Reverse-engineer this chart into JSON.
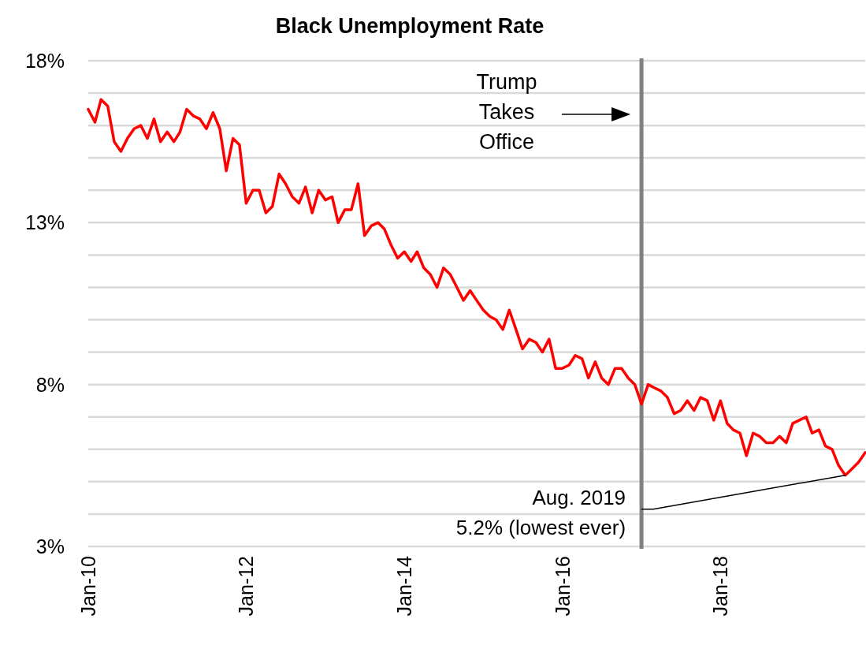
{
  "chart_data": {
    "type": "line",
    "title": "Black Unemployment Rate",
    "x": [
      "2010-01",
      "2010-02",
      "2010-03",
      "2010-04",
      "2010-05",
      "2010-06",
      "2010-07",
      "2010-08",
      "2010-09",
      "2010-10",
      "2010-11",
      "2010-12",
      "2011-01",
      "2011-02",
      "2011-03",
      "2011-04",
      "2011-05",
      "2011-06",
      "2011-07",
      "2011-08",
      "2011-09",
      "2011-10",
      "2011-11",
      "2011-12",
      "2012-01",
      "2012-02",
      "2012-03",
      "2012-04",
      "2012-05",
      "2012-06",
      "2012-07",
      "2012-08",
      "2012-09",
      "2012-10",
      "2012-11",
      "2012-12",
      "2013-01",
      "2013-02",
      "2013-03",
      "2013-04",
      "2013-05",
      "2013-06",
      "2013-07",
      "2013-08",
      "2013-09",
      "2013-10",
      "2013-11",
      "2013-12",
      "2014-01",
      "2014-02",
      "2014-03",
      "2014-04",
      "2014-05",
      "2014-06",
      "2014-07",
      "2014-08",
      "2014-09",
      "2014-10",
      "2014-11",
      "2014-12",
      "2015-01",
      "2015-02",
      "2015-03",
      "2015-04",
      "2015-05",
      "2015-06",
      "2015-07",
      "2015-08",
      "2015-09",
      "2015-10",
      "2015-11",
      "2015-12",
      "2016-01",
      "2016-02",
      "2016-03",
      "2016-04",
      "2016-05",
      "2016-06",
      "2016-07",
      "2016-08",
      "2016-09",
      "2016-10",
      "2016-11",
      "2016-12",
      "2017-01",
      "2017-02",
      "2017-03",
      "2017-04",
      "2017-05",
      "2017-06",
      "2017-07",
      "2017-08",
      "2017-09",
      "2017-10",
      "2017-11",
      "2017-12",
      "2018-01",
      "2018-02",
      "2018-03",
      "2018-04",
      "2018-05",
      "2018-06",
      "2018-07",
      "2018-08",
      "2018-09",
      "2018-10",
      "2018-11",
      "2018-12",
      "2019-01",
      "2019-02",
      "2019-03",
      "2019-04",
      "2019-05",
      "2019-06",
      "2019-07",
      "2019-08",
      "2019-09",
      "2019-10",
      "2019-11"
    ],
    "series": [
      {
        "color": "#ff0000",
        "values": [
          16.5,
          16.1,
          16.8,
          16.6,
          15.5,
          15.2,
          15.6,
          15.9,
          16.0,
          15.6,
          16.2,
          15.5,
          15.8,
          15.5,
          15.8,
          16.5,
          16.3,
          16.2,
          15.9,
          16.4,
          15.9,
          14.6,
          15.6,
          15.4,
          13.6,
          14.0,
          14.0,
          13.3,
          13.5,
          14.5,
          14.2,
          13.8,
          13.6,
          14.1,
          13.3,
          14.0,
          13.7,
          13.8,
          13.0,
          13.4,
          13.4,
          14.2,
          12.6,
          12.9,
          13.0,
          12.8,
          12.3,
          11.9,
          12.1,
          11.8,
          12.1,
          11.6,
          11.4,
          11.0,
          11.6,
          11.4,
          11.0,
          10.6,
          10.9,
          10.6,
          10.3,
          10.1,
          10.0,
          9.7,
          10.3,
          9.7,
          9.1,
          9.4,
          9.3,
          9.0,
          9.4,
          8.5,
          8.5,
          8.6,
          8.9,
          8.8,
          8.2,
          8.7,
          8.2,
          8.0,
          8.5,
          8.5,
          8.2,
          8.0,
          7.4,
          8.0,
          7.9,
          7.8,
          7.6,
          7.1,
          7.2,
          7.5,
          7.2,
          7.6,
          7.5,
          6.9,
          7.5,
          6.8,
          6.6,
          6.5,
          5.8,
          6.5,
          6.4,
          6.2,
          6.2,
          6.4,
          6.2,
          6.8,
          6.9,
          7.0,
          6.5,
          6.6,
          6.1,
          6.0,
          5.5,
          5.2,
          5.4,
          5.6,
          5.9
        ]
      }
    ],
    "xlim": [
      "2010-01",
      "2019-11"
    ],
    "xticks": [
      {
        "value": "2010-01",
        "label": "Jan-10"
      },
      {
        "value": "2012-01",
        "label": "Jan-12"
      },
      {
        "value": "2014-01",
        "label": "Jan-14"
      },
      {
        "value": "2016-01",
        "label": "Jan-16"
      },
      {
        "value": "2018-01",
        "label": "Jan-18"
      }
    ],
    "ylim": [
      3,
      18
    ],
    "yticks": [
      {
        "value": 3,
        "label": "3%"
      },
      {
        "value": 4,
        "label": null
      },
      {
        "value": 5,
        "label": null
      },
      {
        "value": 6,
        "label": null
      },
      {
        "value": 7,
        "label": null
      },
      {
        "value": 8,
        "label": "8%"
      },
      {
        "value": 9,
        "label": null
      },
      {
        "value": 10,
        "label": null
      },
      {
        "value": 11,
        "label": null
      },
      {
        "value": 12,
        "label": null
      },
      {
        "value": 13,
        "label": "13%"
      },
      {
        "value": 14,
        "label": null
      },
      {
        "value": 15,
        "label": null
      },
      {
        "value": 16,
        "label": null
      },
      {
        "value": 17,
        "label": null
      },
      {
        "value": 18,
        "label": "18%"
      }
    ],
    "grid": "y",
    "marker": "none",
    "line_style": "solid",
    "ref_lines": [
      {
        "axis": "x",
        "value": "2017-01",
        "color": "#808080"
      }
    ],
    "annotations": [
      "Trump\nTakes\nOffice",
      {
        "text": "Aug. 2019\n5.2% (lowest ever)",
        "x": "2019-08",
        "y": 5.2
      }
    ]
  }
}
